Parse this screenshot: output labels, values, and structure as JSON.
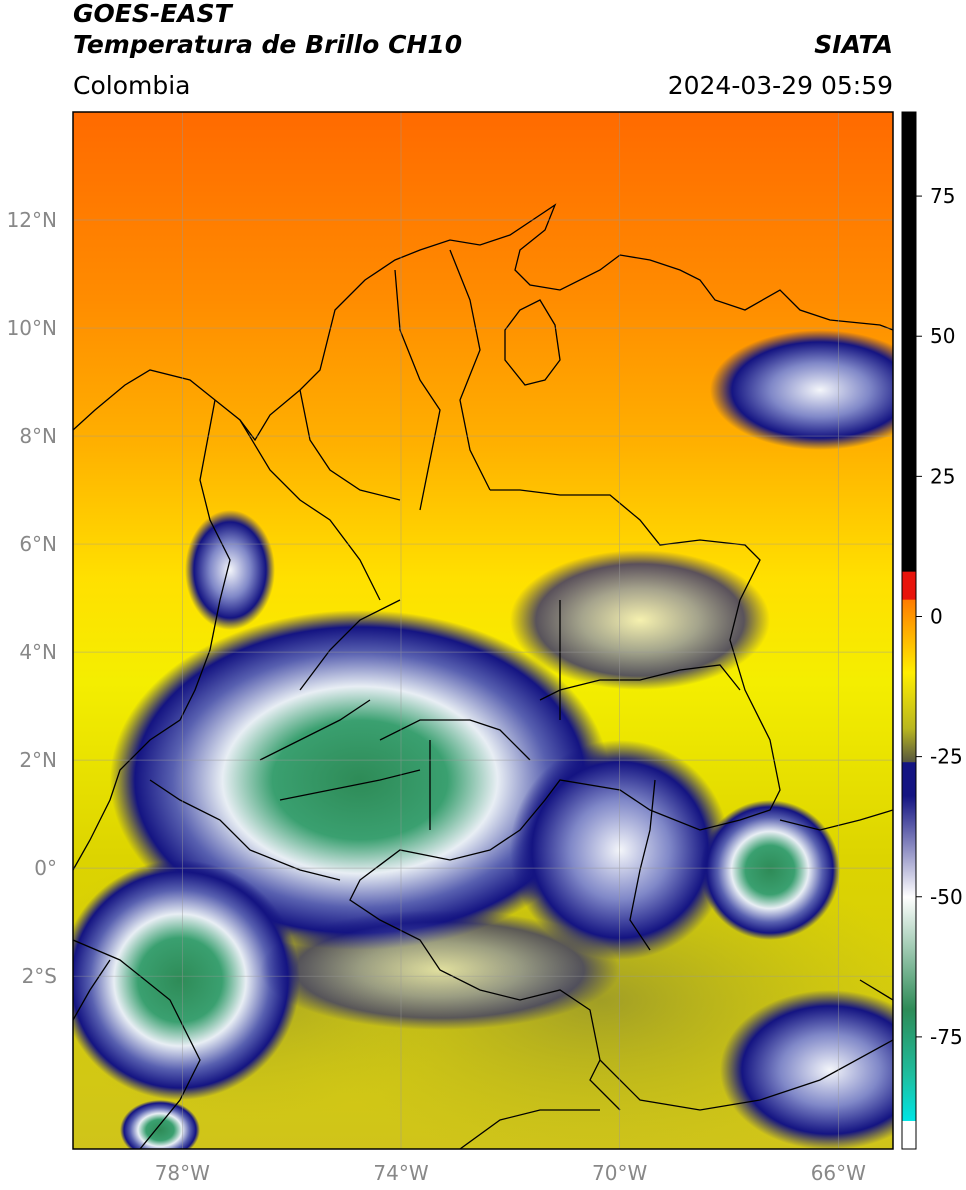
{
  "header": {
    "satellite": "GOES-EAST",
    "product": "Temperatura de Brillo CH10",
    "agency": "SIATA",
    "region": "Colombia",
    "datetime": "2024-03-29 05:59"
  },
  "map": {
    "lon_range": [
      -80,
      -65
    ],
    "lat_range": [
      -5.2,
      14
    ],
    "lat_ticks": [
      {
        "value": 12,
        "label": "12°N"
      },
      {
        "value": 10,
        "label": "10°N"
      },
      {
        "value": 8,
        "label": "8°N"
      },
      {
        "value": 6,
        "label": "6°N"
      },
      {
        "value": 4,
        "label": "4°N"
      },
      {
        "value": 2,
        "label": "2°N"
      },
      {
        "value": 0,
        "label": "0°"
      },
      {
        "value": -2,
        "label": "2°S"
      }
    ],
    "lon_ticks": [
      {
        "value": -78,
        "label": "78°W"
      },
      {
        "value": -74,
        "label": "74°W"
      },
      {
        "value": -70,
        "label": "70°W"
      },
      {
        "value": -66,
        "label": "66°W"
      }
    ],
    "grid": true
  },
  "colorbar": {
    "range": [
      -95,
      90
    ],
    "ticks": [
      {
        "value": 75,
        "label": "75"
      },
      {
        "value": 50,
        "label": "50"
      },
      {
        "value": 25,
        "label": "25"
      },
      {
        "value": 0,
        "label": "0"
      },
      {
        "value": -25,
        "label": "-25"
      },
      {
        "value": -50,
        "label": "-50"
      },
      {
        "value": -75,
        "label": "-75"
      }
    ],
    "colors": {
      "black": "#000000",
      "red": "#e8140c",
      "orange": "#ff7c00",
      "yellow": "#ffee00",
      "olive": "#b8b620",
      "dark_olive": "#555540",
      "navy": "#141482",
      "white": "#ffffff",
      "green": "#2e8b57",
      "teal": "#1ebfa0",
      "cyan": "#00e5e5"
    }
  }
}
